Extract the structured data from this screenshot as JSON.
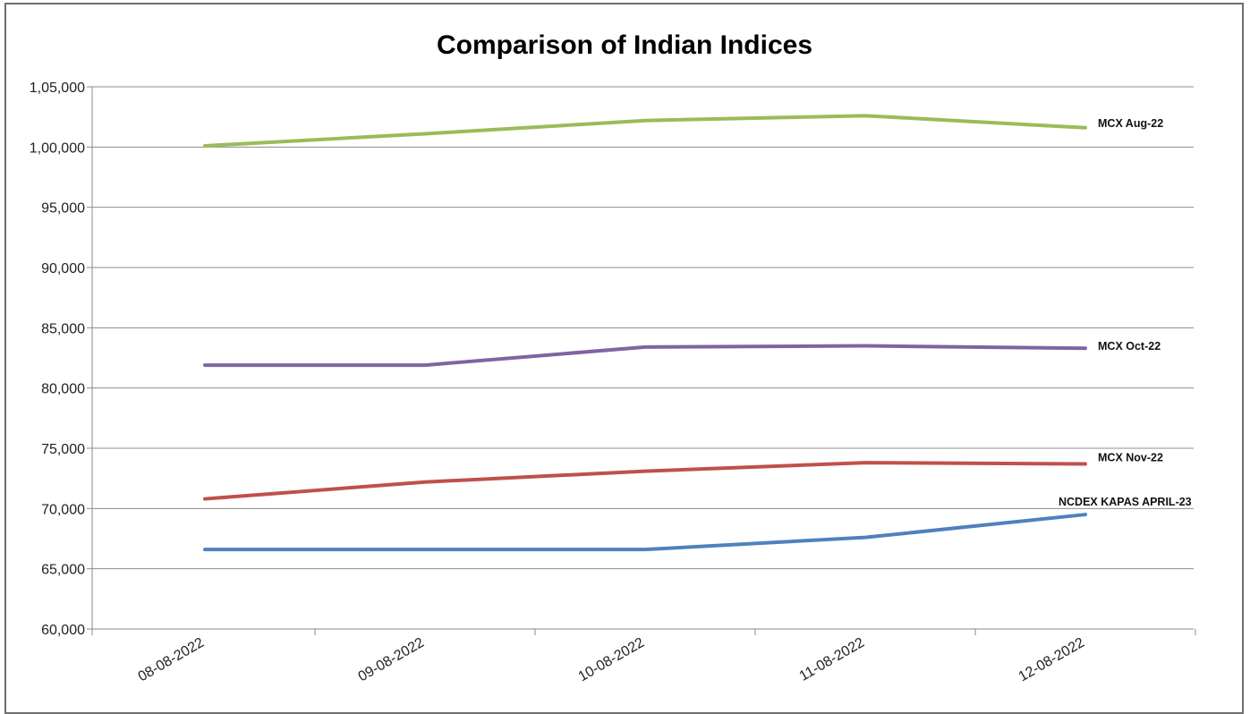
{
  "chart_data": {
    "type": "line",
    "title": "Comparison of Indian Indices",
    "xlabel": "",
    "ylabel": "",
    "categories": [
      "08-08-2022",
      "09-08-2022",
      "10-08-2022",
      "11-08-2022",
      "12-08-2022"
    ],
    "ylim": [
      60000,
      105000
    ],
    "yticks": [
      60000,
      65000,
      70000,
      75000,
      80000,
      85000,
      90000,
      95000,
      100000,
      105000
    ],
    "ytick_labels": [
      "60,000",
      "65,000",
      "70,000",
      "75,000",
      "80,000",
      "85,000",
      "90,000",
      "95,000",
      "1,00,000",
      "1,05,000"
    ],
    "grid": "horizontal",
    "legend": "none (series labeled at line ends)",
    "series": [
      {
        "name": "MCX Aug-22",
        "color": "#9bbb59",
        "values": [
          100100,
          101100,
          102200,
          102600,
          101600
        ]
      },
      {
        "name": "MCX Oct-22",
        "color": "#8064a2",
        "values": [
          81900,
          81900,
          83400,
          83500,
          83300
        ]
      },
      {
        "name": "MCX Nov-22",
        "color": "#c0504d",
        "values": [
          70800,
          72200,
          73100,
          73800,
          73700
        ]
      },
      {
        "name": "NCDEX KAPAS APRIL-23",
        "color": "#4f81bd",
        "values": [
          66600,
          66600,
          66600,
          67600,
          69500
        ]
      }
    ]
  }
}
